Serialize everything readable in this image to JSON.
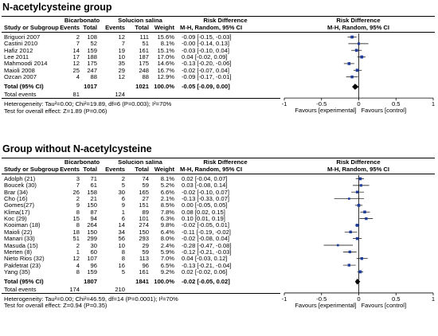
{
  "colors": {
    "ci": "#000000",
    "box": "#1f3c9b",
    "diamond": "#000000"
  },
  "chart_data": [
    {
      "type": "forest",
      "title": "N-acetylcysteine group",
      "group1_header": "Bicarbonato",
      "group2_header": "Solucion salina",
      "col_study": "Study or Subgroup",
      "col_events": "Events",
      "col_total": "Total",
      "col_weight": "Weight",
      "col_rd_top": "Risk Difference",
      "col_rd_bottom": "M-H, Random, 95% CI",
      "plot_header_top": "Risk Difference",
      "plot_header_bottom": "M-H, Random, 95% CI",
      "studies": [
        {
          "name": "Briguori 2007",
          "e1": "2",
          "n1": "108",
          "e2": "12",
          "n2": "111",
          "weight": "15.6%",
          "ci_text": "-0.09 [-0.15, -0.03]",
          "rd": -0.09,
          "lo": -0.15,
          "hi": -0.03,
          "w": 15.6
        },
        {
          "name": "Castini 2010",
          "e1": "7",
          "n1": "52",
          "e2": "7",
          "n2": "51",
          "weight": "8.1%",
          "ci_text": "-0.00 [-0.14, 0.13]",
          "rd": 0.0,
          "lo": -0.14,
          "hi": 0.13,
          "w": 8.1
        },
        {
          "name": "Hafiz 2012",
          "e1": "14",
          "n1": "159",
          "e2": "19",
          "n2": "161",
          "weight": "15.1%",
          "ci_text": "-0.03 [-0.10, 0.04]",
          "rd": -0.03,
          "lo": -0.1,
          "hi": 0.04,
          "w": 15.1
        },
        {
          "name": "Lee 2011",
          "e1": "17",
          "n1": "188",
          "e2": "10",
          "n2": "187",
          "weight": "17.0%",
          "ci_text": "0.04 [-0.02, 0.09]",
          "rd": 0.04,
          "lo": -0.02,
          "hi": 0.09,
          "w": 17.0
        },
        {
          "name": "Mahmoodi 2014",
          "e1": "12",
          "n1": "175",
          "e2": "35",
          "n2": "175",
          "weight": "14.6%",
          "ci_text": "-0.13 [-0.20, -0.06]",
          "rd": -0.13,
          "lo": -0.2,
          "hi": -0.06,
          "w": 14.6
        },
        {
          "name": "Maioli 2008",
          "e1": "25",
          "n1": "247",
          "e2": "29",
          "n2": "248",
          "weight": "16.7%",
          "ci_text": "-0.02 [-0.07, 0.04]",
          "rd": -0.02,
          "lo": -0.07,
          "hi": 0.04,
          "w": 16.7
        },
        {
          "name": "Ozcan 2007",
          "e1": "4",
          "n1": "88",
          "e2": "12",
          "n2": "88",
          "weight": "12.9%",
          "ci_text": "-0.09 [-0.17, -0.01]",
          "rd": -0.09,
          "lo": -0.17,
          "hi": -0.01,
          "w": 12.9
        }
      ],
      "total_label": "Total (95% CI)",
      "total_n1": "1017",
      "total_n2": "1021",
      "total_weight": "100.0%",
      "total_ci_text": "-0.05 [-0.09, 0.00]",
      "total_rd": -0.05,
      "total_lo": -0.09,
      "total_hi": 0.0,
      "events_label": "Total events",
      "events1": "81",
      "events2": "124",
      "heterogeneity": "Heterogeneity: Tau²=0.00; Chi²=19.89, df=6 (P=0.003); I²=70%",
      "overall_effect": "Test for overall effect: Z=1.89 (P=0.06)",
      "x_ticks": [
        "-1",
        "-0.5",
        "0",
        "0.5",
        "1"
      ],
      "x_tick_values": [
        -1,
        -0.5,
        0,
        0.5,
        1
      ],
      "xlim": [
        -1,
        1
      ],
      "favours_left": "Favours [experimental]",
      "favours_right": "Favours [control]"
    },
    {
      "type": "forest",
      "title": "Group without  N-acetylcysteine",
      "group1_header": "Bicarbonato",
      "group2_header": "Solucion salina",
      "col_study": "Study or Subgroup",
      "col_events": "Events",
      "col_total": "Total",
      "col_weight": "Weight",
      "col_rd_top": "Risk Difference",
      "col_rd_bottom": "M-H, Random, 95% CI",
      "plot_header_top": "Risk Difference",
      "plot_header_bottom": "M-H, Random, 95% CI",
      "studies": [
        {
          "name": "Adolph (21)",
          "e1": "3",
          "n1": "71",
          "e2": "2",
          "n2": "74",
          "weight": "8.1%",
          "ci_text": "0.02 [-0.04, 0.07]",
          "rd": 0.02,
          "lo": -0.04,
          "hi": 0.07,
          "w": 8.1
        },
        {
          "name": "Boucek (30)",
          "e1": "7",
          "n1": "61",
          "e2": "5",
          "n2": "59",
          "weight": "5.2%",
          "ci_text": "0.03 [-0.08, 0.14]",
          "rd": 0.03,
          "lo": -0.08,
          "hi": 0.14,
          "w": 5.2
        },
        {
          "name": "Brar (34)",
          "e1": "26",
          "n1": "158",
          "e2": "30",
          "n2": "165",
          "weight": "6.6%",
          "ci_text": "-0.02 [-0.10, 0.07]",
          "rd": -0.02,
          "lo": -0.1,
          "hi": 0.07,
          "w": 6.6
        },
        {
          "name": "Cho (16)",
          "e1": "2",
          "n1": "21",
          "e2": "6",
          "n2": "27",
          "weight": "2.1%",
          "ci_text": "-0.13 [-0.33, 0.07]",
          "rd": -0.13,
          "lo": -0.33,
          "hi": 0.07,
          "w": 2.1
        },
        {
          "name": "Gomes(27)",
          "e1": "9",
          "n1": "150",
          "e2": "9",
          "n2": "151",
          "weight": "8.5%",
          "ci_text": "0.00 [-0.05, 0.05]",
          "rd": 0.0,
          "lo": -0.05,
          "hi": 0.05,
          "w": 8.5
        },
        {
          "name": "Klima(17)",
          "e1": "8",
          "n1": "87",
          "e2": "1",
          "n2": "89",
          "weight": "7.8%",
          "ci_text": "0.08 [0.02, 0.15]",
          "rd": 0.08,
          "lo": 0.02,
          "hi": 0.15,
          "w": 7.8
        },
        {
          "name": "Koc (29)",
          "e1": "15",
          "n1": "94",
          "e2": "6",
          "n2": "101",
          "weight": "6.3%",
          "ci_text": "0.10 [0.01, 0.19]",
          "rd": 0.1,
          "lo": 0.01,
          "hi": 0.19,
          "w": 6.3
        },
        {
          "name": "Kooiman (18)",
          "e1": "8",
          "n1": "264",
          "e2": "14",
          "n2": "274",
          "weight": "9.8%",
          "ci_text": "-0.02 [-0.05, 0.01]",
          "rd": -0.02,
          "lo": -0.05,
          "hi": 0.01,
          "w": 9.8
        },
        {
          "name": "Maioli (22)",
          "e1": "18",
          "n1": "150",
          "e2": "34",
          "n2": "150",
          "weight": "6.4%",
          "ci_text": "-0.11 [-0.19, -0.02]",
          "rd": -0.11,
          "lo": -0.19,
          "hi": -0.02,
          "w": 6.4
        },
        {
          "name": "Manari (33)",
          "e1": "51",
          "n1": "299",
          "e2": "56",
          "n2": "293",
          "weight": "8.0%",
          "ci_text": "-0.02 [-0.08, 0.04]",
          "rd": -0.02,
          "lo": -0.08,
          "hi": 0.04,
          "w": 8.0
        },
        {
          "name": "Masuda (15)",
          "e1": "2",
          "n1": "30",
          "e2": "10",
          "n2": "29",
          "weight": "2.4%",
          "ci_text": "-0.28 [-0.47, -0.08]",
          "rd": -0.28,
          "lo": -0.47,
          "hi": -0.08,
          "w": 2.4
        },
        {
          "name": "Merten (8)",
          "e1": "1",
          "n1": "60",
          "e2": "8",
          "n2": "59",
          "weight": "5.9%",
          "ci_text": "-0.12 [-0.21, -0.03]",
          "rd": -0.12,
          "lo": -0.21,
          "hi": -0.03,
          "w": 5.9
        },
        {
          "name": "Nieto Rios (32)",
          "e1": "12",
          "n1": "107",
          "e2": "8",
          "n2": "113",
          "weight": "7.0%",
          "ci_text": "0.04 [-0.03, 0.12]",
          "rd": 0.04,
          "lo": -0.03,
          "hi": 0.12,
          "w": 7.0
        },
        {
          "name": "Pakfetrat (23)",
          "e1": "4",
          "n1": "96",
          "e2": "16",
          "n2": "96",
          "weight": "6.5%",
          "ci_text": "-0.13 [-0.21, -0.04]",
          "rd": -0.13,
          "lo": -0.21,
          "hi": -0.04,
          "w": 6.5
        },
        {
          "name": "Yang (35)",
          "e1": "8",
          "n1": "159",
          "e2": "5",
          "n2": "161",
          "weight": "9.2%",
          "ci_text": "0.02 [-0.02, 0.06]",
          "rd": 0.02,
          "lo": -0.02,
          "hi": 0.06,
          "w": 9.2
        }
      ],
      "total_label": "Total (95% CI)",
      "total_n1": "1807",
      "total_n2": "1841",
      "total_weight": "100.0%",
      "total_ci_text": "-0.02 [-0.05, 0.02]",
      "total_rd": -0.02,
      "total_lo": -0.05,
      "total_hi": 0.02,
      "events_label": "Total events",
      "events1": "174",
      "events2": "210",
      "heterogeneity": "Heterogeneity: Tau²=0.00; Chi²=46.59, df=14 (P=0.0001); I²=70%",
      "overall_effect": "Test for overall effect: Z=0.94 (P=0.35)",
      "x_ticks": [
        "-1",
        "-0.5",
        "0",
        "0.5",
        "1"
      ],
      "x_tick_values": [
        -1,
        -0.5,
        0,
        0.5,
        1
      ],
      "xlim": [
        -1,
        1
      ],
      "favours_left": "Favours [experimental]",
      "favours_right": "Favours [control]"
    }
  ]
}
